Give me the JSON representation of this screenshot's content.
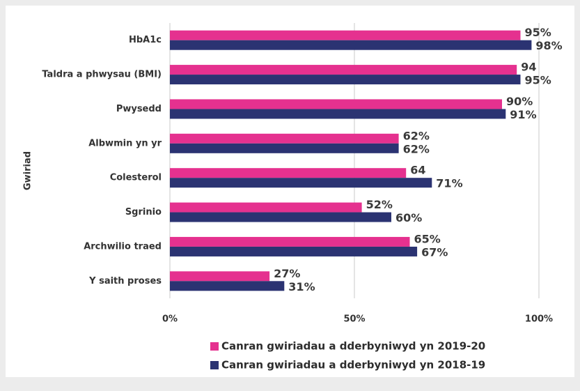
{
  "chart_data": {
    "type": "hbar",
    "y_axis_label": "Gwiriad",
    "categories": [
      "HbA1c",
      "Taldra a phwysau (BMI)",
      "Pwysedd",
      "Albwmin yn yr",
      "Colesterol",
      "Sgrinio",
      "Archwilio traed",
      "Y saith proses"
    ],
    "series": [
      {
        "name": "Canran gwiriadau a dderbyniwyd yn 2019-20",
        "color": "#e5318f",
        "values": [
          95,
          94,
          90,
          62,
          64,
          52,
          65,
          27
        ],
        "value_labels": [
          "95%",
          "94",
          "90%",
          "62%",
          "64",
          "52%",
          "65%",
          "27%"
        ]
      },
      {
        "name": "Canran gwiriadau a dderbyniwyd yn 2018-19",
        "color": "#2b3372",
        "values": [
          98,
          95,
          91,
          62,
          71,
          60,
          67,
          31
        ],
        "value_labels": [
          "98%",
          "95%",
          "91%",
          "62%",
          "71%",
          "60%",
          "67%",
          "31%"
        ]
      }
    ],
    "xlim": [
      0,
      100
    ],
    "xticks": [
      {
        "value": 0,
        "label": "0%"
      },
      {
        "value": 50,
        "label": "50%"
      },
      {
        "value": 100,
        "label": "100%"
      }
    ],
    "grid": true
  }
}
